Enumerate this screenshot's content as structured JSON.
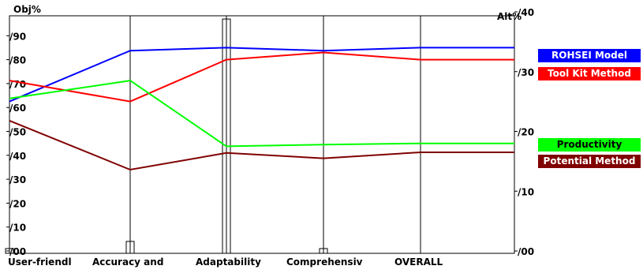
{
  "chart_data": {
    "type": "line",
    "left_axis": {
      "label": "Obj%",
      "range": [
        0,
        100
      ],
      "ticks": [
        "/00",
        "/10",
        "/20",
        "/30",
        "/40",
        "/50",
        "/60",
        "/70",
        "/80",
        "/90"
      ]
    },
    "right_axis": {
      "label": "Alt%",
      "range": [
        0,
        40
      ],
      "ticks": [
        "/00",
        "/10",
        "/20",
        "/30",
        "/40"
      ]
    },
    "categories": [
      "User-friendl",
      "Accuracy and",
      "Adaptability",
      "Comprehensiv",
      "OVERALL"
    ],
    "objective_bars": [
      1,
      4,
      97,
      1,
      0
    ],
    "series": [
      {
        "name": "ROHSEI Model",
        "color": "#0000ff",
        "text_color": "#ffffff",
        "values": [
          25,
          33.5,
          34,
          33.5,
          34
        ]
      },
      {
        "name": "Tool Kit Method",
        "color": "#ff0000",
        "text_color": "#ffffff",
        "values": [
          28.5,
          25,
          32,
          33.2,
          32
        ]
      },
      {
        "name": "Productivity",
        "color": "#00ff00",
        "text_color": "#000000",
        "values": [
          25.5,
          28.5,
          17.5,
          17.8,
          18
        ]
      },
      {
        "name": "Potential Method",
        "color": "#800000",
        "text_color": "#ffffff",
        "values": [
          21.8,
          13.6,
          16.4,
          15.5,
          16.5
        ]
      }
    ],
    "grid": false
  }
}
